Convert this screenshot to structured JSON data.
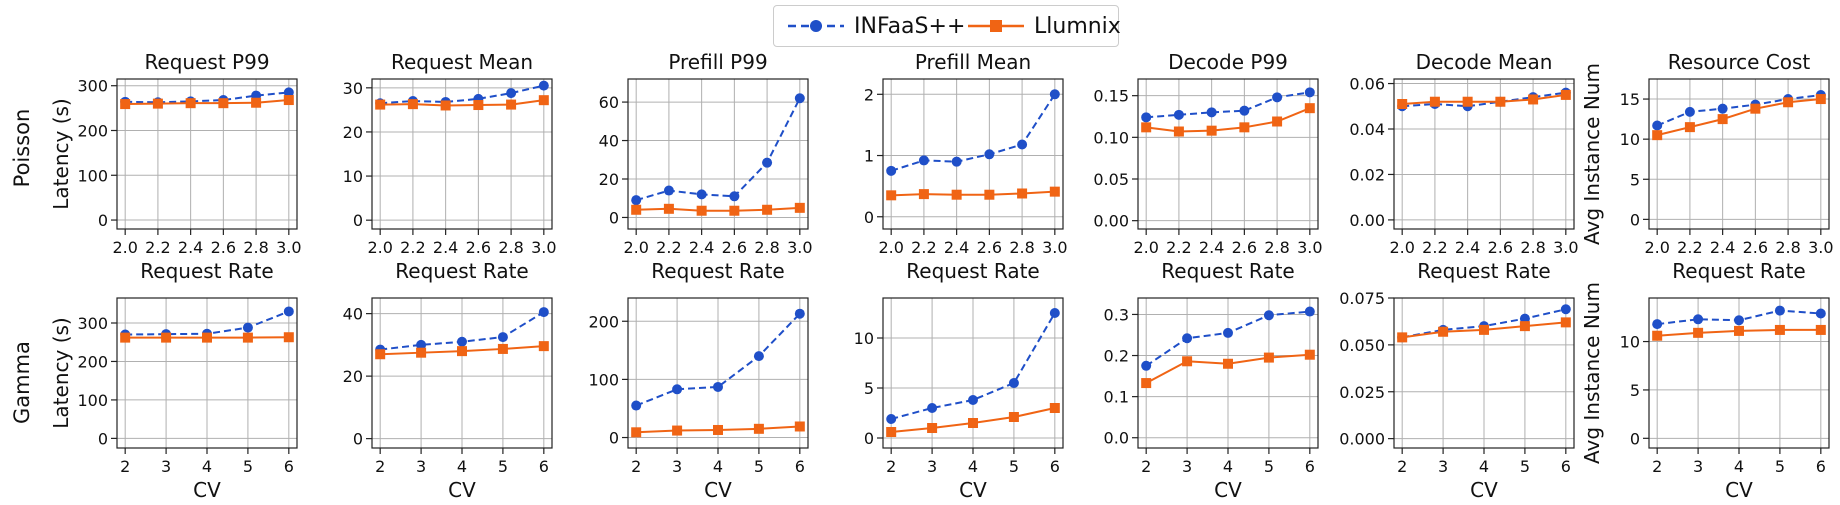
{
  "legend": {
    "series": [
      {
        "name": "INFaaS++",
        "color": "#1f4fc8",
        "marker": "circle",
        "dash": true
      },
      {
        "name": "Llumnix",
        "color": "#f06414",
        "marker": "square",
        "dash": false
      }
    ]
  },
  "rows": [
    {
      "label": "Poisson",
      "xlabel": "Request Rate"
    },
    {
      "label": "Gamma",
      "xlabel": "CV"
    }
  ],
  "chart_data": [
    {
      "type": "line",
      "row": 0,
      "col": 0,
      "title": "Request P99",
      "xlabel": "Request Rate",
      "ylabel": "Latency (s)",
      "x": [
        2.0,
        2.2,
        2.4,
        2.6,
        2.8,
        3.0
      ],
      "xticks": [
        "2.0",
        "2.2",
        "2.4",
        "2.6",
        "2.8",
        "3.0"
      ],
      "xlim": [
        1.95,
        3.05
      ],
      "ylim": [
        -20,
        315
      ],
      "yticks": [
        0,
        100,
        200,
        300
      ],
      "yticklabels": [
        "0",
        "100",
        "200",
        "300"
      ],
      "grid": true,
      "series": [
        {
          "name": "INFaaS++",
          "values": [
            264,
            263,
            265,
            268,
            278,
            285
          ]
        },
        {
          "name": "Llumnix",
          "values": [
            259,
            260,
            261,
            261,
            262,
            268
          ]
        }
      ]
    },
    {
      "type": "line",
      "row": 0,
      "col": 1,
      "title": "Request Mean",
      "xlabel": "Request Rate",
      "ylabel": "",
      "x": [
        2.0,
        2.2,
        2.4,
        2.6,
        2.8,
        3.0
      ],
      "xticks": [
        "2.0",
        "2.2",
        "2.4",
        "2.6",
        "2.8",
        "3.0"
      ],
      "xlim": [
        1.95,
        3.05
      ],
      "ylim": [
        -2,
        32
      ],
      "yticks": [
        0,
        10,
        20,
        30
      ],
      "yticklabels": [
        "0",
        "10",
        "20",
        "30"
      ],
      "grid": true,
      "series": [
        {
          "name": "INFaaS++",
          "values": [
            26.5,
            27.0,
            26.8,
            27.5,
            28.8,
            30.5
          ]
        },
        {
          "name": "Llumnix",
          "values": [
            26.2,
            26.3,
            26.0,
            26.1,
            26.2,
            27.2
          ]
        }
      ]
    },
    {
      "type": "line",
      "row": 0,
      "col": 2,
      "title": "Prefill P99",
      "xlabel": "Request Rate",
      "ylabel": "",
      "x": [
        2.0,
        2.2,
        2.4,
        2.6,
        2.8,
        3.0
      ],
      "xticks": [
        "2.0",
        "2.2",
        "2.4",
        "2.6",
        "2.8",
        "3.0"
      ],
      "xlim": [
        1.95,
        3.05
      ],
      "ylim": [
        -6,
        72
      ],
      "yticks": [
        0,
        20,
        40,
        60
      ],
      "yticklabels": [
        "0",
        "20",
        "40",
        "60"
      ],
      "grid": true,
      "series": [
        {
          "name": "INFaaS++",
          "values": [
            9,
            14,
            12,
            11,
            28.5,
            62
          ]
        },
        {
          "name": "Llumnix",
          "values": [
            4,
            4.5,
            3.5,
            3.5,
            4,
            5
          ]
        }
      ]
    },
    {
      "type": "line",
      "row": 0,
      "col": 3,
      "title": "Prefill Mean",
      "xlabel": "Request Rate",
      "ylabel": "",
      "x": [
        2.0,
        2.2,
        2.4,
        2.6,
        2.8,
        3.0
      ],
      "xticks": [
        "2.0",
        "2.2",
        "2.4",
        "2.6",
        "2.8",
        "3.0"
      ],
      "xlim": [
        1.95,
        3.05
      ],
      "ylim": [
        -0.2,
        2.25
      ],
      "yticks": [
        0,
        1,
        2
      ],
      "yticklabels": [
        "0",
        "1",
        "2"
      ],
      "grid": true,
      "series": [
        {
          "name": "INFaaS++",
          "values": [
            0.75,
            0.92,
            0.9,
            1.02,
            1.18,
            2.0
          ]
        },
        {
          "name": "Llumnix",
          "values": [
            0.35,
            0.37,
            0.36,
            0.36,
            0.38,
            0.41
          ]
        }
      ]
    },
    {
      "type": "line",
      "row": 0,
      "col": 4,
      "title": "Decode P99",
      "xlabel": "Request Rate",
      "ylabel": "",
      "x": [
        2.0,
        2.2,
        2.4,
        2.6,
        2.8,
        3.0
      ],
      "xticks": [
        "2.0",
        "2.2",
        "2.4",
        "2.6",
        "2.8",
        "3.0"
      ],
      "xlim": [
        1.95,
        3.05
      ],
      "ylim": [
        -0.01,
        0.17
      ],
      "yticks": [
        0,
        0.05,
        0.1,
        0.15
      ],
      "yticklabels": [
        "0.00",
        "0.05",
        "0.10",
        "0.15"
      ],
      "grid": true,
      "series": [
        {
          "name": "INFaaS++",
          "values": [
            0.124,
            0.127,
            0.13,
            0.132,
            0.148,
            0.154
          ]
        },
        {
          "name": "Llumnix",
          "values": [
            0.112,
            0.107,
            0.108,
            0.112,
            0.119,
            0.135
          ]
        }
      ]
    },
    {
      "type": "line",
      "row": 0,
      "col": 5,
      "title": "Decode Mean",
      "xlabel": "Request Rate",
      "ylabel": "",
      "x": [
        2.0,
        2.2,
        2.4,
        2.6,
        2.8,
        3.0
      ],
      "xticks": [
        "2.0",
        "2.2",
        "2.4",
        "2.6",
        "2.8",
        "3.0"
      ],
      "xlim": [
        1.95,
        3.05
      ],
      "ylim": [
        -0.004,
        0.062
      ],
      "yticks": [
        0,
        0.02,
        0.04,
        0.06
      ],
      "yticklabels": [
        "0.00",
        "0.02",
        "0.04",
        "0.06"
      ],
      "grid": true,
      "series": [
        {
          "name": "INFaaS++",
          "values": [
            0.05,
            0.051,
            0.05,
            0.052,
            0.054,
            0.056
          ]
        },
        {
          "name": "Llumnix",
          "values": [
            0.051,
            0.052,
            0.052,
            0.052,
            0.053,
            0.055
          ]
        }
      ]
    },
    {
      "type": "line",
      "row": 0,
      "col": 6,
      "title": "Resource Cost",
      "xlabel": "Request Rate",
      "ylabel": "Avg Instance Num",
      "x": [
        2.0,
        2.2,
        2.4,
        2.6,
        2.8,
        3.0
      ],
      "xticks": [
        "2.0",
        "2.2",
        "2.4",
        "2.6",
        "2.8",
        "3.0"
      ],
      "xlim": [
        1.95,
        3.05
      ],
      "ylim": [
        -1.2,
        17.5
      ],
      "yticks": [
        0,
        5,
        10,
        15
      ],
      "yticklabels": [
        "0",
        "5",
        "10",
        "15"
      ],
      "grid": true,
      "series": [
        {
          "name": "INFaaS++",
          "values": [
            11.7,
            13.4,
            13.8,
            14.3,
            15.0,
            15.5
          ]
        },
        {
          "name": "Llumnix",
          "values": [
            10.5,
            11.5,
            12.5,
            13.8,
            14.6,
            15.0
          ]
        }
      ]
    },
    {
      "type": "line",
      "row": 1,
      "col": 0,
      "title": "",
      "xlabel": "CV",
      "ylabel": "Latency (s)",
      "x": [
        2,
        3,
        4,
        5,
        6
      ],
      "xticks": [
        "2",
        "3",
        "4",
        "5",
        "6"
      ],
      "xlim": [
        1.8,
        6.2
      ],
      "ylim": [
        -25,
        365
      ],
      "yticks": [
        0,
        100,
        200,
        300
      ],
      "yticklabels": [
        "0",
        "100",
        "200",
        "300"
      ],
      "grid": true,
      "series": [
        {
          "name": "INFaaS++",
          "values": [
            270,
            271,
            272,
            288,
            330
          ]
        },
        {
          "name": "Llumnix",
          "values": [
            262,
            262,
            262,
            262,
            263
          ]
        }
      ]
    },
    {
      "type": "line",
      "row": 1,
      "col": 1,
      "title": "",
      "xlabel": "CV",
      "ylabel": "",
      "x": [
        2,
        3,
        4,
        5,
        6
      ],
      "xticks": [
        "2",
        "3",
        "4",
        "5",
        "6"
      ],
      "xlim": [
        1.8,
        6.2
      ],
      "ylim": [
        -3,
        45
      ],
      "yticks": [
        0,
        20,
        40
      ],
      "yticklabels": [
        "0",
        "20",
        "40"
      ],
      "grid": true,
      "series": [
        {
          "name": "INFaaS++",
          "values": [
            28.5,
            30.0,
            31.0,
            32.5,
            40.5
          ]
        },
        {
          "name": "Llumnix",
          "values": [
            27.0,
            27.5,
            28.0,
            28.7,
            29.6
          ]
        }
      ]
    },
    {
      "type": "line",
      "row": 1,
      "col": 2,
      "title": "",
      "xlabel": "CV",
      "ylabel": "",
      "x": [
        2,
        3,
        4,
        5,
        6
      ],
      "xticks": [
        "2",
        "3",
        "4",
        "5",
        "6"
      ],
      "xlim": [
        1.8,
        6.2
      ],
      "ylim": [
        -18,
        240
      ],
      "yticks": [
        0,
        100,
        200
      ],
      "yticklabels": [
        "0",
        "100",
        "200"
      ],
      "grid": true,
      "series": [
        {
          "name": "INFaaS++",
          "values": [
            55,
            83,
            87,
            140,
            213
          ]
        },
        {
          "name": "Llumnix",
          "values": [
            9,
            12,
            13,
            15,
            19
          ]
        }
      ]
    },
    {
      "type": "line",
      "row": 1,
      "col": 3,
      "title": "",
      "xlabel": "CV",
      "ylabel": "",
      "x": [
        2,
        3,
        4,
        5,
        6
      ],
      "xticks": [
        "2",
        "3",
        "4",
        "5",
        "6"
      ],
      "xlim": [
        1.8,
        6.2
      ],
      "ylim": [
        -1,
        14
      ],
      "yticks": [
        0,
        5,
        10
      ],
      "yticklabels": [
        "0",
        "5",
        "10"
      ],
      "grid": true,
      "series": [
        {
          "name": "INFaaS++",
          "values": [
            1.9,
            3.0,
            3.8,
            5.5,
            12.5
          ]
        },
        {
          "name": "Llumnix",
          "values": [
            0.6,
            1.0,
            1.5,
            2.1,
            3.0
          ]
        }
      ]
    },
    {
      "type": "line",
      "row": 1,
      "col": 4,
      "title": "",
      "xlabel": "CV",
      "ylabel": "",
      "x": [
        2,
        3,
        4,
        5,
        6
      ],
      "xticks": [
        "2",
        "3",
        "4",
        "5",
        "6"
      ],
      "xlim": [
        1.8,
        6.2
      ],
      "ylim": [
        -0.025,
        0.34
      ],
      "yticks": [
        0,
        0.1,
        0.2,
        0.3
      ],
      "yticklabels": [
        "0.0",
        "0.1",
        "0.2",
        "0.3"
      ],
      "grid": true,
      "series": [
        {
          "name": "INFaaS++",
          "values": [
            0.175,
            0.242,
            0.255,
            0.298,
            0.307
          ]
        },
        {
          "name": "Llumnix",
          "values": [
            0.133,
            0.186,
            0.18,
            0.195,
            0.202
          ]
        }
      ]
    },
    {
      "type": "line",
      "row": 1,
      "col": 5,
      "title": "",
      "xlabel": "CV",
      "ylabel": "",
      "x": [
        2,
        3,
        4,
        5,
        6
      ],
      "xticks": [
        "2",
        "3",
        "4",
        "5",
        "6"
      ],
      "xlim": [
        1.8,
        6.2
      ],
      "ylim": [
        -0.005,
        0.075
      ],
      "yticks": [
        0,
        0.025,
        0.05,
        0.075
      ],
      "yticklabels": [
        "0.000",
        "0.025",
        "0.050",
        "0.075"
      ],
      "grid": true,
      "series": [
        {
          "name": "INFaaS++",
          "values": [
            0.054,
            0.058,
            0.06,
            0.064,
            0.069
          ]
        },
        {
          "name": "Llumnix",
          "values": [
            0.054,
            0.057,
            0.058,
            0.06,
            0.062
          ]
        }
      ]
    },
    {
      "type": "line",
      "row": 1,
      "col": 6,
      "title": "",
      "xlabel": "CV",
      "ylabel": "Avg Instance Num",
      "x": [
        2,
        3,
        4,
        5,
        6
      ],
      "xticks": [
        "2",
        "3",
        "4",
        "5",
        "6"
      ],
      "xlim": [
        1.8,
        6.2
      ],
      "ylim": [
        -1,
        14.5
      ],
      "yticks": [
        0,
        5,
        10
      ],
      "yticklabels": [
        "0",
        "5",
        "10"
      ],
      "grid": true,
      "series": [
        {
          "name": "INFaaS++",
          "values": [
            11.8,
            12.3,
            12.2,
            13.2,
            12.9
          ]
        },
        {
          "name": "Llumnix",
          "values": [
            10.6,
            10.9,
            11.1,
            11.2,
            11.2
          ]
        }
      ]
    }
  ]
}
